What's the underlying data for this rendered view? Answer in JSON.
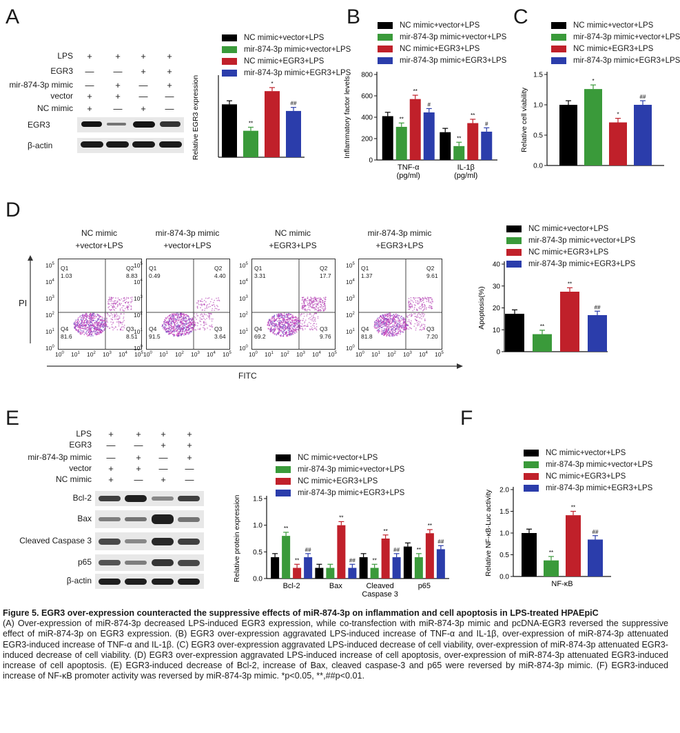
{
  "colors": {
    "s1": "#000000",
    "s2": "#3a9a3a",
    "s3": "#c0202a",
    "s4": "#2b3dab"
  },
  "series_names": [
    "NC mimic+vector+LPS",
    "mir-874-3p mimic+vector+LPS",
    "NC mimic+EGR3+LPS",
    "mir-874-3p mimic+EGR3+LPS"
  ],
  "panels": {
    "A": "A",
    "B": "B",
    "C": "C",
    "D": "D",
    "E": "E",
    "F": "F"
  },
  "panel_a": {
    "rows": [
      {
        "label": "LPS",
        "signs": [
          "+",
          "+",
          "+",
          "+"
        ]
      },
      {
        "label": "EGR3",
        "signs": [
          "—",
          "—",
          "+",
          "+"
        ]
      },
      {
        "label": "mir-874-3p mimic",
        "signs": [
          "—",
          "+",
          "—",
          "+"
        ]
      },
      {
        "label": "vector",
        "signs": [
          "+",
          "+",
          "—",
          "—"
        ]
      },
      {
        "label": "NC mimic",
        "signs": [
          "+",
          "—",
          "+",
          "—"
        ]
      }
    ],
    "blots": [
      "EGR3",
      "β-actin"
    ]
  },
  "panel_d": {
    "y_axis": "PI",
    "x_axis": "FITC",
    "plots": [
      {
        "title1": "NC mimic",
        "title2": "+vector+LPS",
        "q1": "1.03",
        "q2": "8.83",
        "q3": "8.51",
        "q4": "81.6"
      },
      {
        "title1": "mir-874-3p mimic",
        "title2": "+vector+LPS",
        "q1": "0.49",
        "q2": "4.40",
        "q3": "3.64",
        "q4": "91.5"
      },
      {
        "title1": "NC mimic",
        "title2": "+EGR3+LPS",
        "q1": "3.31",
        "q2": "17.7",
        "q3": "9.76",
        "q4": "69.2"
      },
      {
        "title1": "mir-874-3p mimic",
        "title2": "+EGR3+LPS",
        "q1": "1.37",
        "q2": "9.61",
        "q3": "7.20",
        "q4": "81.8"
      }
    ],
    "quad_labels": [
      "Q1",
      "Q2",
      "Q3",
      "Q4"
    ],
    "tick_labels": [
      "10",
      "10",
      "10",
      "10",
      "10",
      "10"
    ],
    "tick_exps": [
      "0",
      "1",
      "2",
      "3",
      "4",
      "5"
    ]
  },
  "panel_e": {
    "rows": [
      {
        "label": "LPS",
        "signs": [
          "+",
          "+",
          "+",
          "+"
        ]
      },
      {
        "label": "EGR3",
        "signs": [
          "—",
          "—",
          "+",
          "+"
        ]
      },
      {
        "label": "mir-874-3p mimic",
        "signs": [
          "—",
          "+",
          "—",
          "+"
        ]
      },
      {
        "label": "vector",
        "signs": [
          "+",
          "+",
          "—",
          "—"
        ]
      },
      {
        "label": "NC mimic",
        "signs": [
          "+",
          "—",
          "+",
          "—"
        ]
      }
    ],
    "blots": [
      "Bcl-2",
      "Bax",
      "Cleaved Caspase 3",
      "p65",
      "β-actin"
    ]
  },
  "chart_data": [
    {
      "id": "A",
      "type": "bar",
      "ylabel": "Relative EGR3 expression",
      "ylim": [
        0,
        0.6
      ],
      "categories": [
        ""
      ],
      "series": [
        {
          "name": "NC mimic+vector+LPS",
          "values": [
            0.4
          ]
        },
        {
          "name": "mir-874-3p mimic+vector+LPS",
          "values": [
            0.2
          ]
        },
        {
          "name": "NC mimic+EGR3+LPS",
          "values": [
            0.5
          ]
        },
        {
          "name": "mir-874-3p mimic+EGR3+LPS",
          "values": [
            0.35
          ]
        }
      ],
      "sig": [
        [
          "",
          "**",
          "*",
          "##"
        ]
      ]
    },
    {
      "id": "B",
      "type": "bar",
      "ylabel": "Inflammatory factor levels",
      "ylim": [
        0,
        800
      ],
      "yticks": [
        0,
        200,
        400,
        600,
        800
      ],
      "categories": [
        "TNF-α\n(pg/ml)",
        "IL-1β\n(pg/ml)"
      ],
      "series": [
        {
          "name": "NC mimic+vector+LPS",
          "values": [
            410,
            260
          ]
        },
        {
          "name": "mir-874-3p mimic+vector+LPS",
          "values": [
            310,
            130
          ]
        },
        {
          "name": "NC mimic+EGR3+LPS",
          "values": [
            570,
            345
          ]
        },
        {
          "name": "mir-874-3p mimic+EGR3+LPS",
          "values": [
            445,
            265
          ]
        }
      ],
      "sig": [
        [
          "",
          "**",
          "**",
          "#"
        ],
        [
          "",
          "**",
          "**",
          "#"
        ]
      ]
    },
    {
      "id": "C",
      "type": "bar",
      "ylabel": "Relative cell viability",
      "ylim": [
        0,
        1.5
      ],
      "yticks": [
        0.0,
        0.5,
        1.0,
        1.5
      ],
      "categories": [
        ""
      ],
      "series": [
        {
          "name": "NC mimic+vector+LPS",
          "values": [
            1.0
          ]
        },
        {
          "name": "mir-874-3p mimic+vector+LPS",
          "values": [
            1.26
          ]
        },
        {
          "name": "NC mimic+EGR3+LPS",
          "values": [
            0.71
          ]
        },
        {
          "name": "mir-874-3p mimic+EGR3+LPS",
          "values": [
            1.0
          ]
        }
      ],
      "sig": [
        [
          "",
          "*",
          "*",
          "##"
        ]
      ]
    },
    {
      "id": "D",
      "type": "bar",
      "ylabel": "Apoptosis(%)",
      "ylim": [
        0,
        40
      ],
      "yticks": [
        0,
        10,
        20,
        30,
        40
      ],
      "categories": [
        ""
      ],
      "series": [
        {
          "name": "NC mimic+vector+LPS",
          "values": [
            17.3
          ]
        },
        {
          "name": "mir-874-3p mimic+vector+LPS",
          "values": [
            8.0
          ]
        },
        {
          "name": "NC mimic+EGR3+LPS",
          "values": [
            27.4
          ]
        },
        {
          "name": "mir-874-3p mimic+EGR3+LPS",
          "values": [
            16.7
          ]
        }
      ],
      "sig": [
        [
          "",
          "**",
          "**",
          "##"
        ]
      ]
    },
    {
      "id": "E",
      "type": "bar",
      "ylabel": "Relative protein expression",
      "ylim": [
        0,
        1.5
      ],
      "yticks": [
        0.0,
        0.5,
        1.0,
        1.5
      ],
      "categories": [
        "Bcl-2",
        "Bax",
        "Cleaved\nCaspase 3",
        "p65"
      ],
      "series": [
        {
          "name": "NC mimic+vector+LPS",
          "values": [
            0.4,
            0.2,
            0.4,
            0.6
          ]
        },
        {
          "name": "mir-874-3p mimic+vector+LPS",
          "values": [
            0.8,
            0.2,
            0.2,
            0.4
          ]
        },
        {
          "name": "NC mimic+EGR3+LPS",
          "values": [
            0.2,
            1.0,
            0.75,
            0.85
          ]
        },
        {
          "name": "mir-874-3p mimic+EGR3+LPS",
          "values": [
            0.4,
            0.2,
            0.4,
            0.55
          ]
        }
      ],
      "sig": [
        [
          "",
          "**",
          "**",
          "##"
        ],
        [
          "",
          "",
          "**",
          "##"
        ],
        [
          "",
          "**",
          "**",
          "##"
        ],
        [
          "",
          "**",
          "**",
          "##"
        ]
      ]
    },
    {
      "id": "F",
      "type": "bar",
      "ylabel": "Relative NF-κB-Luc activity",
      "ylim": [
        0,
        2.0
      ],
      "yticks": [
        0.0,
        0.5,
        1.0,
        1.5,
        2.0
      ],
      "categories": [
        "NF-κB"
      ],
      "series": [
        {
          "name": "NC mimic+vector+LPS",
          "values": [
            1.0
          ]
        },
        {
          "name": "mir-874-3p mimic+vector+LPS",
          "values": [
            0.37
          ]
        },
        {
          "name": "NC mimic+EGR3+LPS",
          "values": [
            1.41
          ]
        },
        {
          "name": "mir-874-3p mimic+EGR3+LPS",
          "values": [
            0.85
          ]
        }
      ],
      "sig": [
        [
          "",
          "**",
          "**",
          "##"
        ]
      ]
    }
  ],
  "caption": {
    "title": "Figure 5. EGR3 over-expression counteracted the suppressive effects of miR-874-3p on inflammation and cell apoptosis in LPS-treated HPAEpiC",
    "body": "(A) Over-expression of miR-874-3p decreased LPS-induced EGR3 expression, while co-transfection with miR-874-3p mimic and pcDNA-EGR3 reversed the suppressive effect of miR-874-3p on EGR3 expression. (B) EGR3 over-expression aggravated LPS-induced increase of TNF-α and IL-1β, over-expression of miR-874-3p attenuated EGR3-induced increase of TNF-α and IL-1β. (C) EGR3 over-expression aggravated LPS-induced decrease of cell viability, over-expression of miR-874-3p attenuated EGR3-induced decrease of cell viability. (D) EGR3 over-expression aggravated LPS-induced increase of cell apoptosis, over-expression of miR-874-3p attenuated EGR3-induced increase of cell apoptosis. (E) EGR3-induced decrease of Bcl-2, increase of Bax, cleaved caspase-3 and p65 were reversed by miR-874-3p mimic. (F) EGR3-induced increase of NF-κB promoter activity was reversed by miR-874-3p mimic. *p<0.05, **,##p<0.01."
  }
}
